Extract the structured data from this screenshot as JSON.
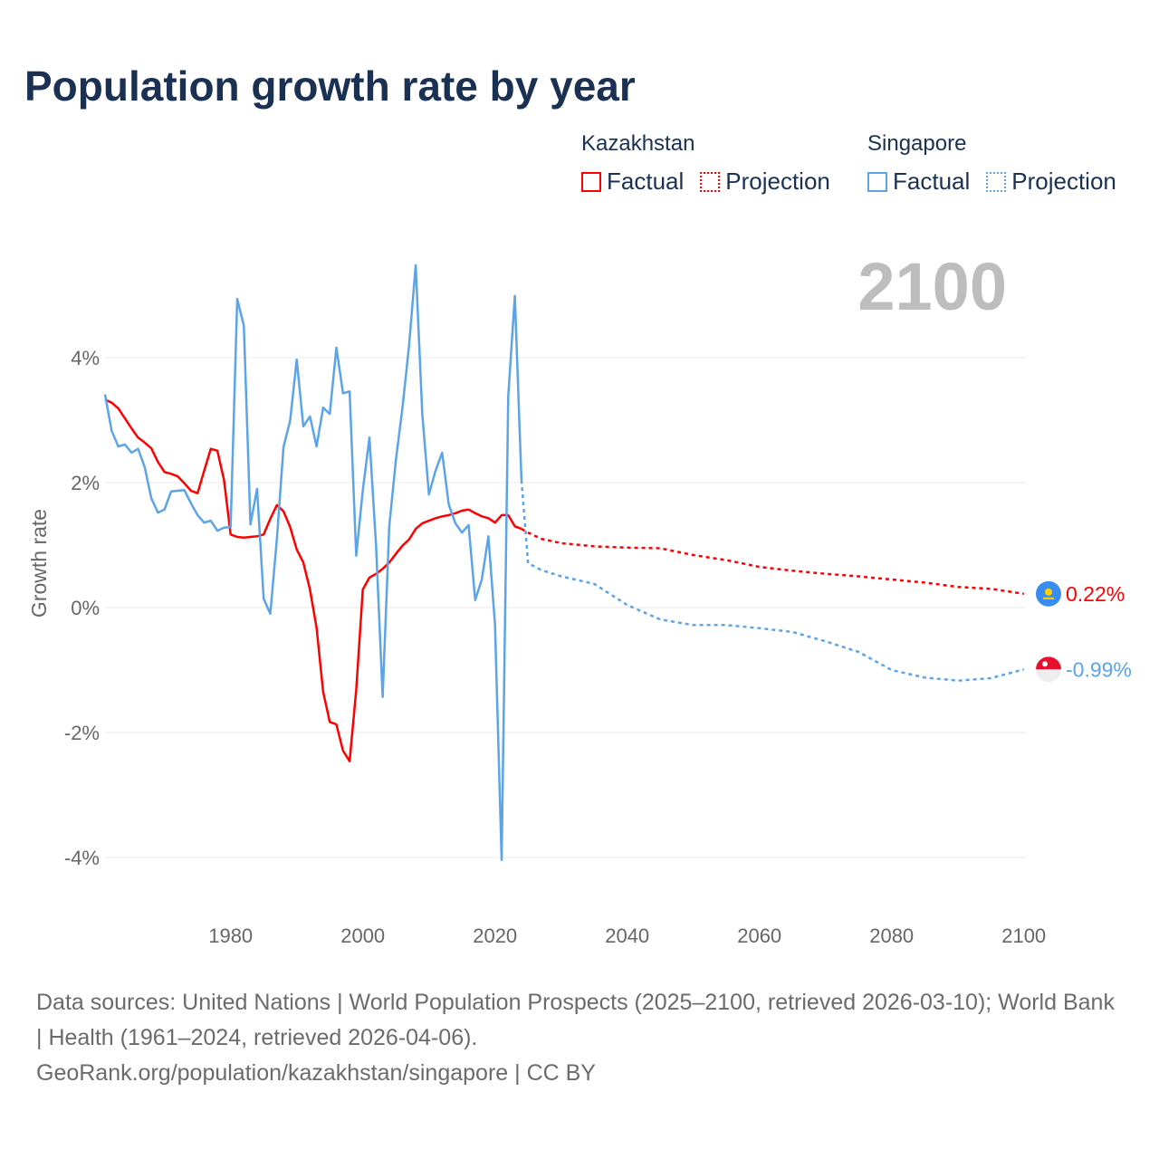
{
  "title": "Population growth rate by year",
  "legend": {
    "groups": [
      {
        "name": "Kazakhstan",
        "color": "#ff0000",
        "factual": "Factual",
        "projection": "Projection"
      },
      {
        "name": "Singapore",
        "color": "#5ba4e8",
        "factual": "Factual",
        "projection": "Projection"
      }
    ]
  },
  "year_label": "2100",
  "footer": {
    "sources": "Data sources: United Nations | World Population Prospects (2025–2100, retrieved 2026-03-10); World Bank | Health (1961–2024, retrieved 2026-04-06).",
    "credit": "GeoRank.org/population/kazakhstan/singapore | CC BY"
  },
  "chart_data": {
    "type": "line",
    "title": "Population growth rate by year",
    "xlabel": "",
    "ylabel": "Growth rate",
    "xlim": [
      1961,
      2100
    ],
    "ylim": [
      -4.6,
      5.6
    ],
    "x_ticks": [
      1980,
      2000,
      2020,
      2040,
      2060,
      2080,
      2100
    ],
    "y_ticks": [
      {
        "v": 4,
        "label": "4%"
      },
      {
        "v": 2,
        "label": "2%"
      },
      {
        "v": 0,
        "label": "0%"
      },
      {
        "v": -2,
        "label": "-2%"
      },
      {
        "v": -4,
        "label": "-4%"
      }
    ],
    "grid": true,
    "series": [
      {
        "name": "Kazakhstan Factual",
        "color": "#ff0000",
        "dashed": false,
        "x": [
          1961,
          1962,
          1963,
          1964,
          1965,
          1966,
          1967,
          1968,
          1969,
          1970,
          1971,
          1972,
          1973,
          1974,
          1975,
          1976,
          1977,
          1978,
          1979,
          1980,
          1981,
          1982,
          1983,
          1984,
          1985,
          1986,
          1987,
          1988,
          1989,
          1990,
          1991,
          1992,
          1993,
          1994,
          1995,
          1996,
          1997,
          1998,
          1999,
          2000,
          2001,
          2002,
          2003,
          2004,
          2005,
          2006,
          2007,
          2008,
          2009,
          2010,
          2011,
          2012,
          2013,
          2014,
          2015,
          2016,
          2017,
          2018,
          2019,
          2020,
          2021,
          2022,
          2023,
          2024
        ],
        "values": [
          3.33,
          3.28,
          3.19,
          3.03,
          2.87,
          2.72,
          2.64,
          2.55,
          2.33,
          2.17,
          2.14,
          2.1,
          1.99,
          1.87,
          1.83,
          2.19,
          2.54,
          2.51,
          2.04,
          1.17,
          1.13,
          1.12,
          1.13,
          1.14,
          1.17,
          1.42,
          1.64,
          1.54,
          1.29,
          0.93,
          0.72,
          0.29,
          -0.32,
          -1.35,
          -1.83,
          -1.87,
          -2.29,
          -2.46,
          -1.32,
          0.29,
          0.48,
          0.54,
          0.62,
          0.72,
          0.86,
          0.99,
          1.09,
          1.26,
          1.35,
          1.39,
          1.43,
          1.46,
          1.48,
          1.51,
          1.55,
          1.57,
          1.51,
          1.46,
          1.43,
          1.36,
          1.48,
          1.48,
          1.3,
          1.26
        ]
      },
      {
        "name": "Kazakhstan Projection",
        "color": "#ff0000",
        "dashed": true,
        "x": [
          2024,
          2025,
          2027,
          2030,
          2035,
          2040,
          2045,
          2050,
          2055,
          2060,
          2065,
          2070,
          2075,
          2080,
          2085,
          2090,
          2095,
          2100
        ],
        "values": [
          1.26,
          1.2,
          1.1,
          1.03,
          0.98,
          0.96,
          0.95,
          0.84,
          0.76,
          0.65,
          0.59,
          0.54,
          0.5,
          0.45,
          0.4,
          0.33,
          0.3,
          0.22
        ]
      },
      {
        "name": "Singapore Factual",
        "color": "#5ba4e8",
        "dashed": false,
        "x": [
          1961,
          1962,
          1963,
          1964,
          1965,
          1966,
          1967,
          1968,
          1969,
          1970,
          1971,
          1972,
          1973,
          1974,
          1975,
          1976,
          1977,
          1978,
          1979,
          1980,
          1981,
          1982,
          1983,
          1984,
          1985,
          1986,
          1987,
          1988,
          1989,
          1990,
          1991,
          1992,
          1993,
          1994,
          1995,
          1996,
          1997,
          1998,
          1999,
          2000,
          2001,
          2002,
          2003,
          2004,
          2005,
          2006,
          2007,
          2008,
          2009,
          2010,
          2011,
          2012,
          2013,
          2014,
          2015,
          2016,
          2017,
          2018,
          2019,
          2020,
          2021,
          2022,
          2023,
          2024
        ],
        "values": [
          3.41,
          2.83,
          2.58,
          2.61,
          2.48,
          2.54,
          2.25,
          1.75,
          1.52,
          1.57,
          1.86,
          1.87,
          1.88,
          1.67,
          1.48,
          1.36,
          1.39,
          1.23,
          1.28,
          1.29,
          4.94,
          4.51,
          1.33,
          1.9,
          0.14,
          -0.1,
          1.1,
          2.57,
          2.99,
          3.97,
          2.9,
          3.06,
          2.58,
          3.2,
          3.1,
          4.16,
          3.43,
          3.46,
          0.83,
          1.88,
          2.72,
          1.0,
          -1.43,
          1.3,
          2.36,
          3.2,
          4.2,
          5.48,
          3.09,
          1.81,
          2.19,
          2.48,
          1.65,
          1.35,
          1.2,
          1.32,
          0.12,
          0.45,
          1.14,
          -0.28,
          -4.04,
          3.38,
          4.99,
          2.04
        ]
      },
      {
        "name": "Singapore Projection",
        "color": "#5ba4e8",
        "dashed": true,
        "x": [
          2024,
          2025,
          2027,
          2030,
          2035,
          2040,
          2045,
          2050,
          2055,
          2060,
          2065,
          2070,
          2075,
          2080,
          2085,
          2090,
          2095,
          2100
        ],
        "values": [
          2.04,
          0.71,
          0.6,
          0.5,
          0.38,
          0.04,
          -0.19,
          -0.28,
          -0.28,
          -0.33,
          -0.39,
          -0.54,
          -0.71,
          -1.0,
          -1.12,
          -1.17,
          -1.13,
          -0.99
        ]
      }
    ],
    "end_labels": [
      {
        "series": "Kazakhstan",
        "label": "0.22%",
        "value": 0.22,
        "color": "#ff0000"
      },
      {
        "series": "Singapore",
        "label": "-0.99%",
        "value": -0.99,
        "color": "#5ba4e8"
      }
    ]
  }
}
